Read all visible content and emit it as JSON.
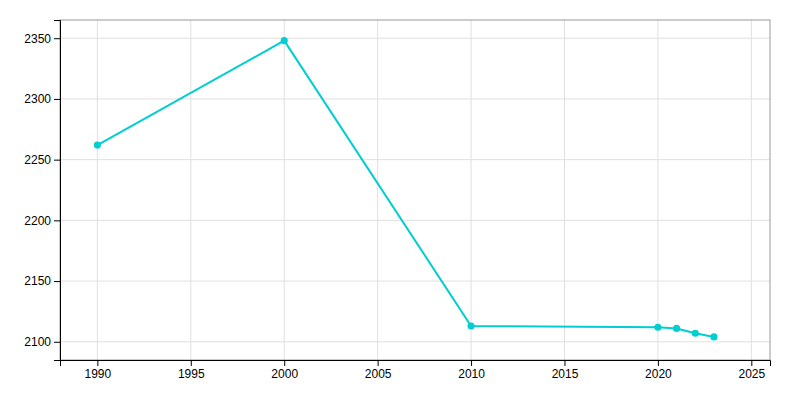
{
  "chart_data": {
    "type": "line",
    "x": [
      1990,
      2000,
      2010,
      2020,
      2021,
      2022,
      2023
    ],
    "values": [
      2262,
      2348,
      2113,
      2112,
      2111,
      2107,
      2104
    ],
    "color": "#00CED1",
    "marker": "circle",
    "xlim": [
      1988,
      2026
    ],
    "ylim": [
      2085,
      2365
    ],
    "xticks": [
      1990,
      1995,
      2000,
      2005,
      2010,
      2015,
      2020,
      2025
    ],
    "yticks": [
      2100,
      2150,
      2200,
      2250,
      2300,
      2350
    ],
    "grid": true
  }
}
